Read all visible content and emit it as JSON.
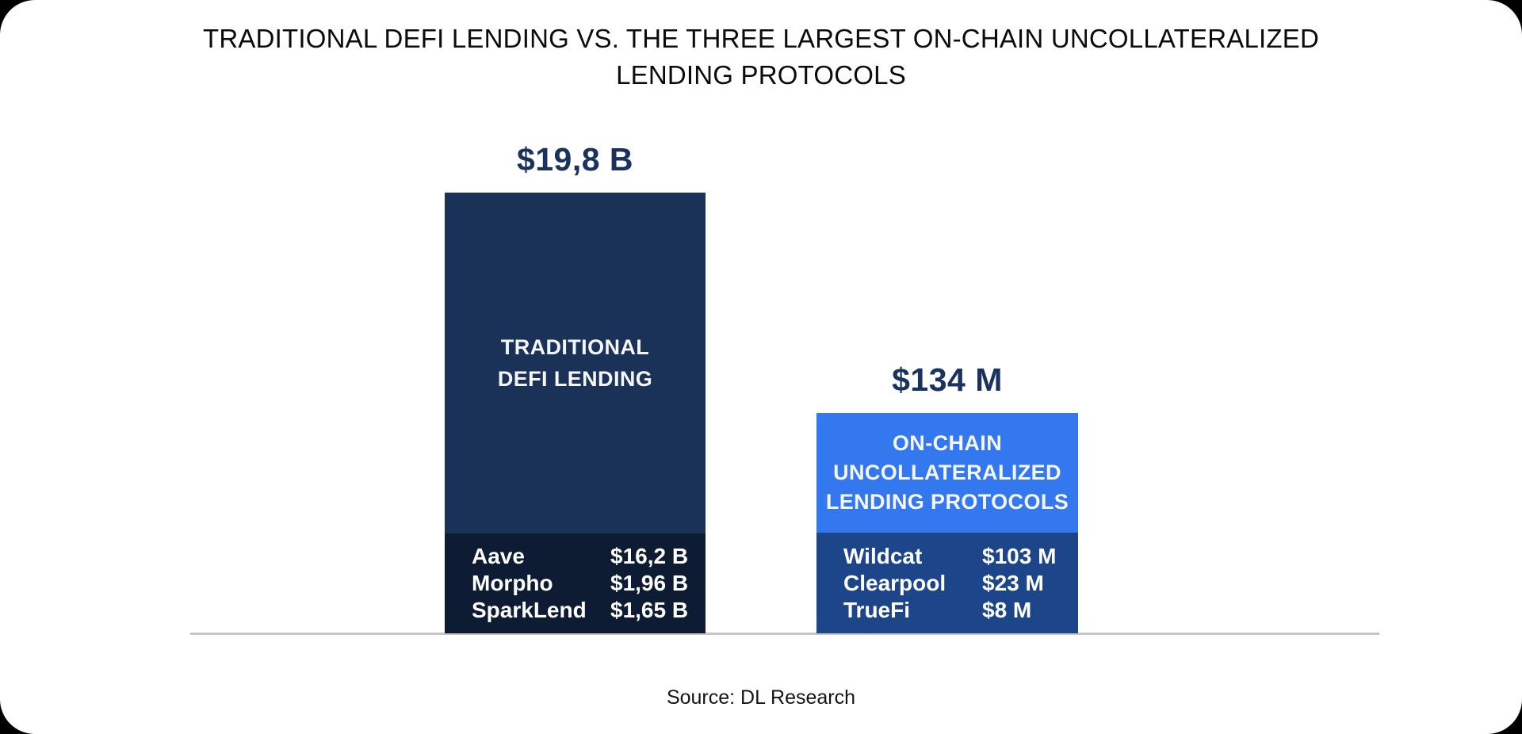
{
  "title": {
    "line1": "TRADITIONAL DEFI LENDING VS. THE THREE LARGEST ON-CHAIN UNCOLLATERALIZED",
    "line2": "LENDING PROTOCOLS",
    "full": "TRADITIONAL DEFI LENDING VS. THE THREE LARGEST ON-CHAIN UNCOLLATERALIZED LENDING PROTOCOLS"
  },
  "source": "Source: DL Research",
  "colors": {
    "page_background": "#000000",
    "card_background": "#ffffff",
    "traditional_bar": "#1b3258",
    "traditional_breakdown": "#0e1c33",
    "onchain_bar": "#3478f0",
    "onchain_breakdown": "#1c4689",
    "total_label_text": "#1a3260",
    "bar_text": "#ffffff",
    "baseline": "#c5c5c5"
  },
  "chart_data": {
    "type": "bar",
    "title": "TRADITIONAL DEFI LENDING VS. THE THREE LARGEST ON-CHAIN UNCOLLATERALIZED LENDING PROTOCOLS",
    "unit": "USD",
    "source": "Source: DL Research",
    "categories": [
      "TRADITIONAL DEFI LENDING",
      "ON-CHAIN UNCOLLATERALIZED LENDING PROTOCOLS"
    ],
    "values_usd_millions": [
      19800,
      134
    ],
    "layout_hints": {
      "legend": "none",
      "grid": "off",
      "baseline_axis": true,
      "bar_heights_not_to_scale": true,
      "value_labels_position": "above-bar"
    },
    "bars": [
      {
        "label": "TRADITIONAL DEFI LENDING",
        "label_lines": [
          "TRADITIONAL",
          "DEFI LENDING"
        ],
        "total_label": "$19,8 B",
        "total_value_usd_millions": 19800,
        "protocols": [
          {
            "name": "Aave",
            "value": "$16,2 B"
          },
          {
            "name": "Morpho",
            "value": "$1,96 B"
          },
          {
            "name": "SparkLend",
            "value": "$1,65 B"
          }
        ]
      },
      {
        "label": "ON-CHAIN UNCOLLATERALIZED LENDING PROTOCOLS",
        "label_lines": [
          "ON-CHAIN",
          "UNCOLLATERALIZED",
          "LENDING PROTOCOLS"
        ],
        "total_label": "$134 M",
        "total_value_usd_millions": 134,
        "protocols": [
          {
            "name": "Wildcat",
            "value": "$103 M"
          },
          {
            "name": "Clearpool",
            "value": "$23 M"
          },
          {
            "name": "TrueFi",
            "value": "$8 M"
          }
        ]
      }
    ]
  }
}
